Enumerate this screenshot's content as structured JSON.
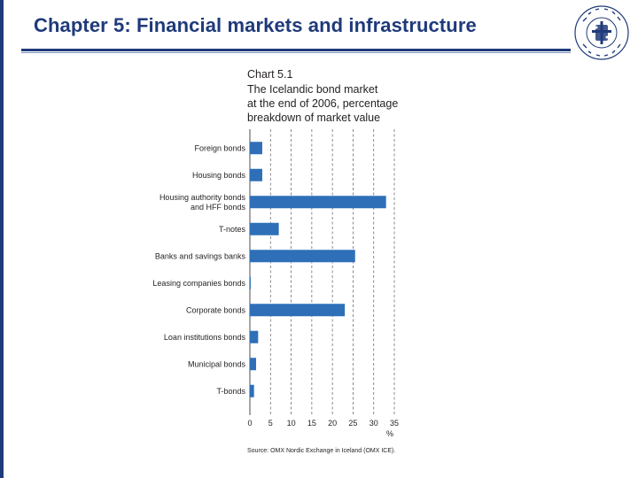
{
  "slide": {
    "title": "Chapter 5: Financial markets and infrastructure"
  },
  "logo": {
    "icon": "university-seal-icon",
    "color": "#1f3a7a"
  },
  "theme": {
    "accent": "#1f3a7a",
    "bar_color": "#2e6fb8",
    "grid_color": "#6d6e71"
  },
  "chart_data": {
    "type": "bar",
    "orientation": "horizontal",
    "chart_number": "Chart 5.1",
    "title_lines": [
      "The Icelandic bond market",
      "at the end of 2006, percentage",
      "breakdown of market value"
    ],
    "category_lines": [
      [
        "Foreign bonds"
      ],
      [
        "Housing bonds"
      ],
      [
        "Housing authority bonds",
        "and HFF bonds"
      ],
      [
        "T-notes"
      ],
      [
        "Banks and savings banks"
      ],
      [
        "Leasing companies bonds"
      ],
      [
        "Corporate bonds"
      ],
      [
        "Loan institutions bonds"
      ],
      [
        "Municipal bonds"
      ],
      [
        "T-bonds"
      ]
    ],
    "values": [
      3,
      3,
      33,
      7,
      25.5,
      0.2,
      23,
      2,
      1.5,
      1
    ],
    "xlim": [
      0,
      35
    ],
    "xticks": [
      "0",
      "5",
      "10",
      "15",
      "20",
      "25",
      "30",
      "35"
    ],
    "xunit": "%",
    "grid": "vertical dashed",
    "source": "Source: OMX Nordic Exchange in Iceland (OMX ICE)."
  }
}
